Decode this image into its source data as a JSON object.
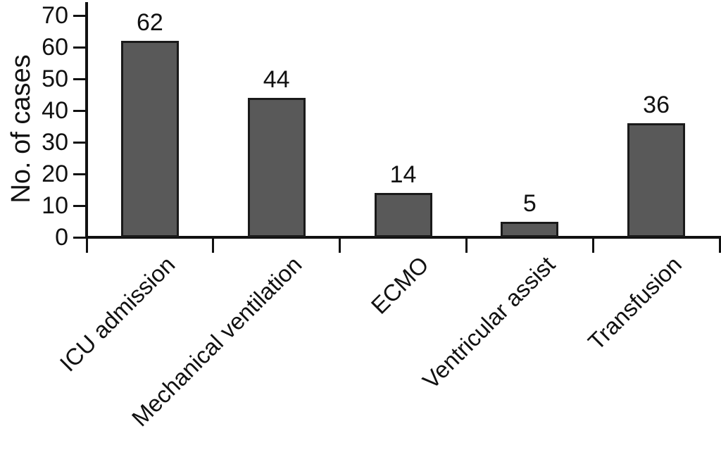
{
  "figure": {
    "background_color": "#ffffff"
  },
  "chart_data": {
    "type": "bar",
    "title": "",
    "categories": [
      "ICU admission",
      "Mechanical ventilation",
      "ECMO",
      "Ventricular assist",
      "Transfusion"
    ],
    "values": [
      62,
      44,
      14,
      5,
      36
    ],
    "value_labels": [
      "62",
      "44",
      "14",
      "5",
      "36"
    ],
    "xlabel": "",
    "ylabel": "No. of cases",
    "ylim": [
      0,
      70
    ],
    "yticks": [
      0,
      10,
      20,
      30,
      40,
      50,
      60,
      70
    ],
    "ytick_labels": [
      "0",
      "10",
      "20",
      "30",
      "40",
      "50",
      "60",
      "70"
    ],
    "x_tick_label_rotation_deg": 45,
    "grid": false,
    "legend": "none",
    "bar_fill_color": "#595959",
    "bar_border_color": "#1a1a1a",
    "axis_color": "#111111",
    "text_color": "#111111"
  }
}
